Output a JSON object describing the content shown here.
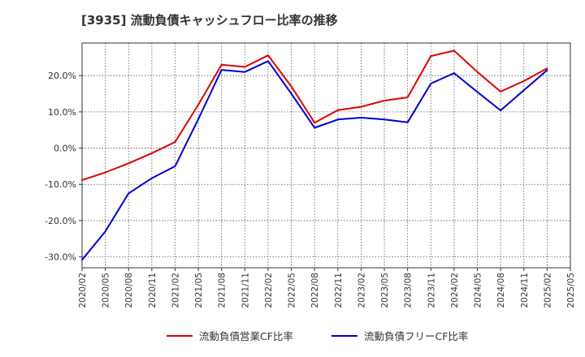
{
  "chart_data": {
    "type": "line",
    "title": "[3935]  流動負債キャッシュフロー比率の推移",
    "xlabel": "",
    "ylabel": "",
    "ylim": [
      -33,
      29
    ],
    "yticks": [
      -30,
      -20,
      -10,
      0,
      10,
      20
    ],
    "ytick_labels": [
      "-30.0%",
      "-20.0%",
      "-10.0%",
      "0.0%",
      "10.0%",
      "20.0%"
    ],
    "categories": [
      "2020/02",
      "2020/05",
      "2020/08",
      "2020/11",
      "2021/02",
      "2021/05",
      "2021/08",
      "2021/11",
      "2022/02",
      "2022/05",
      "2022/08",
      "2022/11",
      "2023/02",
      "2023/05",
      "2023/08",
      "2023/11",
      "2024/02",
      "2024/05",
      "2024/08",
      "2024/11",
      "2025/02",
      "2025/05"
    ],
    "grid": true,
    "legend_position": "bottom",
    "series": [
      {
        "name": "流動負債営業CF比率",
        "color": "#e00000",
        "values": [
          -8.8,
          -6.7,
          -4.2,
          -1.4,
          1.7,
          12.0,
          23.0,
          22.4,
          25.6,
          17.0,
          7.0,
          10.5,
          11.4,
          13.1,
          14.0,
          25.4,
          26.9,
          21.0,
          15.6,
          18.5,
          22.0,
          null
        ]
      },
      {
        "name": "流動負債フリーCF比率",
        "color": "#0000cc",
        "values": [
          -30.8,
          -23.0,
          -12.5,
          -8.3,
          -5.0,
          8.0,
          21.6,
          21.0,
          24.0,
          15.0,
          5.6,
          7.9,
          8.4,
          7.9,
          7.1,
          17.8,
          20.7,
          15.5,
          10.4,
          16.0,
          21.5,
          null
        ]
      }
    ]
  }
}
